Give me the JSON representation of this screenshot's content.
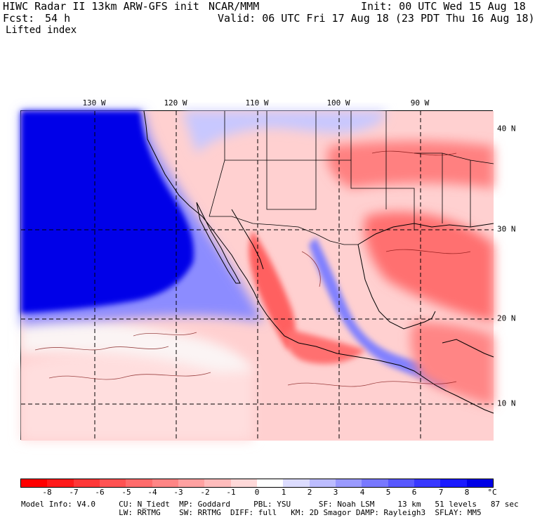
{
  "header": {
    "title": "HIWC Radar II 13km ARW-GFS init",
    "org": "NCAR/MMM",
    "init": "Init: 00 UTC Wed 15 Aug 18",
    "fcst_label": "Fcst:",
    "fcst_value": "54 h",
    "valid": "Valid: 06 UTC Fri 17 Aug 18 (23 PDT Thu 16 Aug 18)",
    "field": "Lifted index"
  },
  "map": {
    "lon_labels": [
      "130 W",
      "120 W",
      "110 W",
      "100 W",
      "90 W"
    ],
    "lat_labels": [
      "40 N",
      "30 N",
      "20 N",
      "10 N"
    ]
  },
  "colorbar": {
    "ticks": [
      "-8",
      "-7",
      "-6",
      "-5",
      "-4",
      "-3",
      "-2",
      "-1",
      "0",
      "1",
      "2",
      "3",
      "4",
      "5",
      "6",
      "7",
      "8"
    ],
    "unit": "°C",
    "colors": [
      "#ff0000",
      "#ff1a1a",
      "#ff3838",
      "#ff5252",
      "#ff6b6b",
      "#ff8585",
      "#ffa1a1",
      "#ffbcbc",
      "#ffd9d9",
      "#ffffff",
      "#dcdcff",
      "#bcbcff",
      "#9a9aff",
      "#7878ff",
      "#5858ff",
      "#3838ff",
      "#1a1aff",
      "#0000e6"
    ]
  },
  "footer": {
    "line1": "Model Info: V4.0     CU: N_Tiedt  MP: Goddard     PBL: YSU      SF: Noah LSM     13 km   51 levels   87 sec",
    "line2": "                     LW: RRTMG    SW: RRTMG  DIFF: full   KM: 2D Smagor DAMP: Rayleigh3  SFLAY: MM5"
  }
}
